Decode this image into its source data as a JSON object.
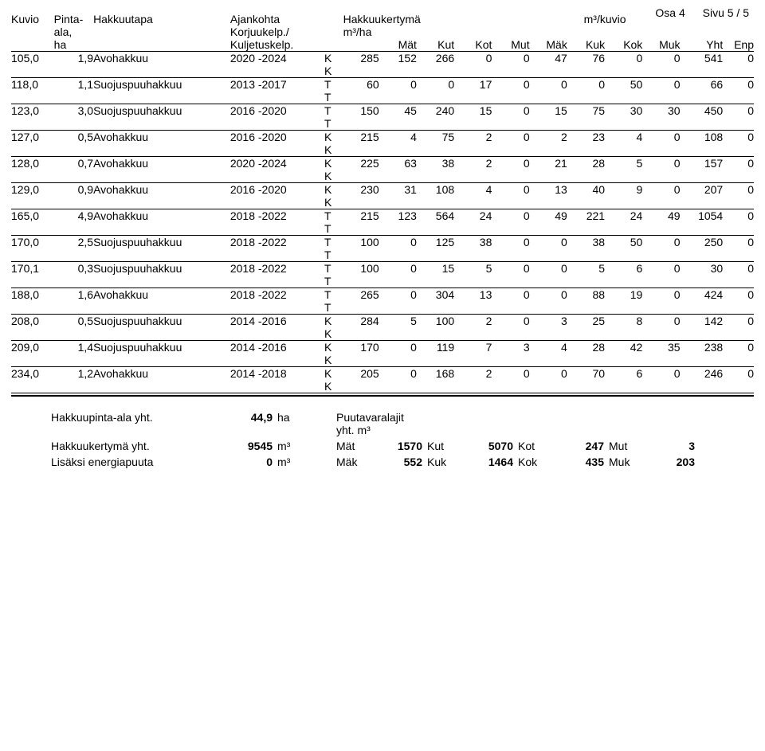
{
  "page_info": {
    "osa_label": "Osa 4",
    "sivu_label": "Sivu 5 / 5"
  },
  "headers": {
    "kuvio": "Kuvio",
    "pinta_ala": "Pinta-\nala,\nha",
    "hakkuutapa": "Hakkuutapa",
    "ajankohta": "Ajankohta",
    "korjuukelp": "Korjuukelp./",
    "kuljetuskelp": "Kuljetuskelp.",
    "hakkuukertyma": "Hakkuukertymä",
    "m3ha": "m³/ha",
    "m3kuvio": "m³/kuvio",
    "cols": [
      "Mät",
      "Kut",
      "Kot",
      "Mut",
      "Mäk",
      "Kuk",
      "Kok",
      "Muk",
      "Yht",
      "Enp"
    ]
  },
  "rows": [
    {
      "kuvio": "105,0",
      "ala": "1,9",
      "tapa": "Avohakkuu",
      "ajank": "2020 -2024",
      "k1": "K",
      "k2": "K",
      "m3ha": "285",
      "v": [
        "152",
        "266",
        "0",
        "0",
        "47",
        "76",
        "0",
        "0"
      ],
      "yht": "541",
      "enp": "0"
    },
    {
      "kuvio": "118,0",
      "ala": "1,1",
      "tapa": "Suojuspuuhakkuu",
      "ajank": "2013 -2017",
      "k1": "T",
      "k2": "T",
      "m3ha": "60",
      "v": [
        "0",
        "0",
        "17",
        "0",
        "0",
        "0",
        "50",
        "0"
      ],
      "yht": "66",
      "enp": "0"
    },
    {
      "kuvio": "123,0",
      "ala": "3,0",
      "tapa": "Suojuspuuhakkuu",
      "ajank": "2016 -2020",
      "k1": "T",
      "k2": "T",
      "m3ha": "150",
      "v": [
        "45",
        "240",
        "15",
        "0",
        "15",
        "75",
        "30",
        "30"
      ],
      "yht": "450",
      "enp": "0"
    },
    {
      "kuvio": "127,0",
      "ala": "0,5",
      "tapa": "Avohakkuu",
      "ajank": "2016 -2020",
      "k1": "K",
      "k2": "K",
      "m3ha": "215",
      "v": [
        "4",
        "75",
        "2",
        "0",
        "2",
        "23",
        "4",
        "0"
      ],
      "yht": "108",
      "enp": "0"
    },
    {
      "kuvio": "128,0",
      "ala": "0,7",
      "tapa": "Avohakkuu",
      "ajank": "2020 -2024",
      "k1": "K",
      "k2": "K",
      "m3ha": "225",
      "v": [
        "63",
        "38",
        "2",
        "0",
        "21",
        "28",
        "5",
        "0"
      ],
      "yht": "157",
      "enp": "0"
    },
    {
      "kuvio": "129,0",
      "ala": "0,9",
      "tapa": "Avohakkuu",
      "ajank": "2016 -2020",
      "k1": "K",
      "k2": "K",
      "m3ha": "230",
      "v": [
        "31",
        "108",
        "4",
        "0",
        "13",
        "40",
        "9",
        "0"
      ],
      "yht": "207",
      "enp": "0"
    },
    {
      "kuvio": "165,0",
      "ala": "4,9",
      "tapa": "Avohakkuu",
      "ajank": "2018 -2022",
      "k1": "T",
      "k2": "T",
      "m3ha": "215",
      "v": [
        "123",
        "564",
        "24",
        "0",
        "49",
        "221",
        "24",
        "49"
      ],
      "yht": "1054",
      "enp": "0"
    },
    {
      "kuvio": "170,0",
      "ala": "2,5",
      "tapa": "Suojuspuuhakkuu",
      "ajank": "2018 -2022",
      "k1": "T",
      "k2": "T",
      "m3ha": "100",
      "v": [
        "0",
        "125",
        "38",
        "0",
        "0",
        "38",
        "50",
        "0"
      ],
      "yht": "250",
      "enp": "0"
    },
    {
      "kuvio": "170,1",
      "ala": "0,3",
      "tapa": "Suojuspuuhakkuu",
      "ajank": "2018 -2022",
      "k1": "T",
      "k2": "T",
      "m3ha": "100",
      "v": [
        "0",
        "15",
        "5",
        "0",
        "0",
        "5",
        "6",
        "0"
      ],
      "yht": "30",
      "enp": "0"
    },
    {
      "kuvio": "188,0",
      "ala": "1,6",
      "tapa": "Avohakkuu",
      "ajank": "2018 -2022",
      "k1": "T",
      "k2": "T",
      "m3ha": "265",
      "v": [
        "0",
        "304",
        "13",
        "0",
        "0",
        "88",
        "19",
        "0"
      ],
      "yht": "424",
      "enp": "0"
    },
    {
      "kuvio": "208,0",
      "ala": "0,5",
      "tapa": "Suojuspuuhakkuu",
      "ajank": "2014 -2016",
      "k1": "K",
      "k2": "K",
      "m3ha": "284",
      "v": [
        "5",
        "100",
        "2",
        "0",
        "3",
        "25",
        "8",
        "0"
      ],
      "yht": "142",
      "enp": "0"
    },
    {
      "kuvio": "209,0",
      "ala": "1,4",
      "tapa": "Suojuspuuhakkuu",
      "ajank": "2014 -2016",
      "k1": "K",
      "k2": "K",
      "m3ha": "170",
      "v": [
        "0",
        "119",
        "7",
        "3",
        "4",
        "28",
        "42",
        "35"
      ],
      "yht": "238",
      "enp": "0"
    },
    {
      "kuvio": "234,0",
      "ala": "1,2",
      "tapa": "Avohakkuu",
      "ajank": "2014 -2018",
      "k1": "K",
      "k2": "K",
      "m3ha": "205",
      "v": [
        "0",
        "168",
        "2",
        "0",
        "0",
        "70",
        "6",
        "0"
      ],
      "yht": "246",
      "enp": "0"
    }
  ],
  "footer": {
    "left": [
      {
        "label": "Hakkuupinta-ala yht.",
        "val": "44,9",
        "unit": "ha"
      },
      {
        "label": "Hakkuukertymä  yht.",
        "val": "9545",
        "unit": "m³"
      },
      {
        "label": "Lisäksi energiapuuta",
        "val": "0",
        "unit": "m³"
      }
    ],
    "right_title": "Puutavaralajit yht. m³",
    "grid": [
      [
        {
          "l": "Mät",
          "v": "1570"
        },
        {
          "l": "Kut",
          "v": "5070"
        },
        {
          "l": "Kot",
          "v": "247"
        },
        {
          "l": "Mut",
          "v": "3"
        }
      ],
      [
        {
          "l": "Mäk",
          "v": "552"
        },
        {
          "l": "Kuk",
          "v": "1464"
        },
        {
          "l": "Kok",
          "v": "435"
        },
        {
          "l": "Muk",
          "v": "203"
        }
      ]
    ]
  }
}
